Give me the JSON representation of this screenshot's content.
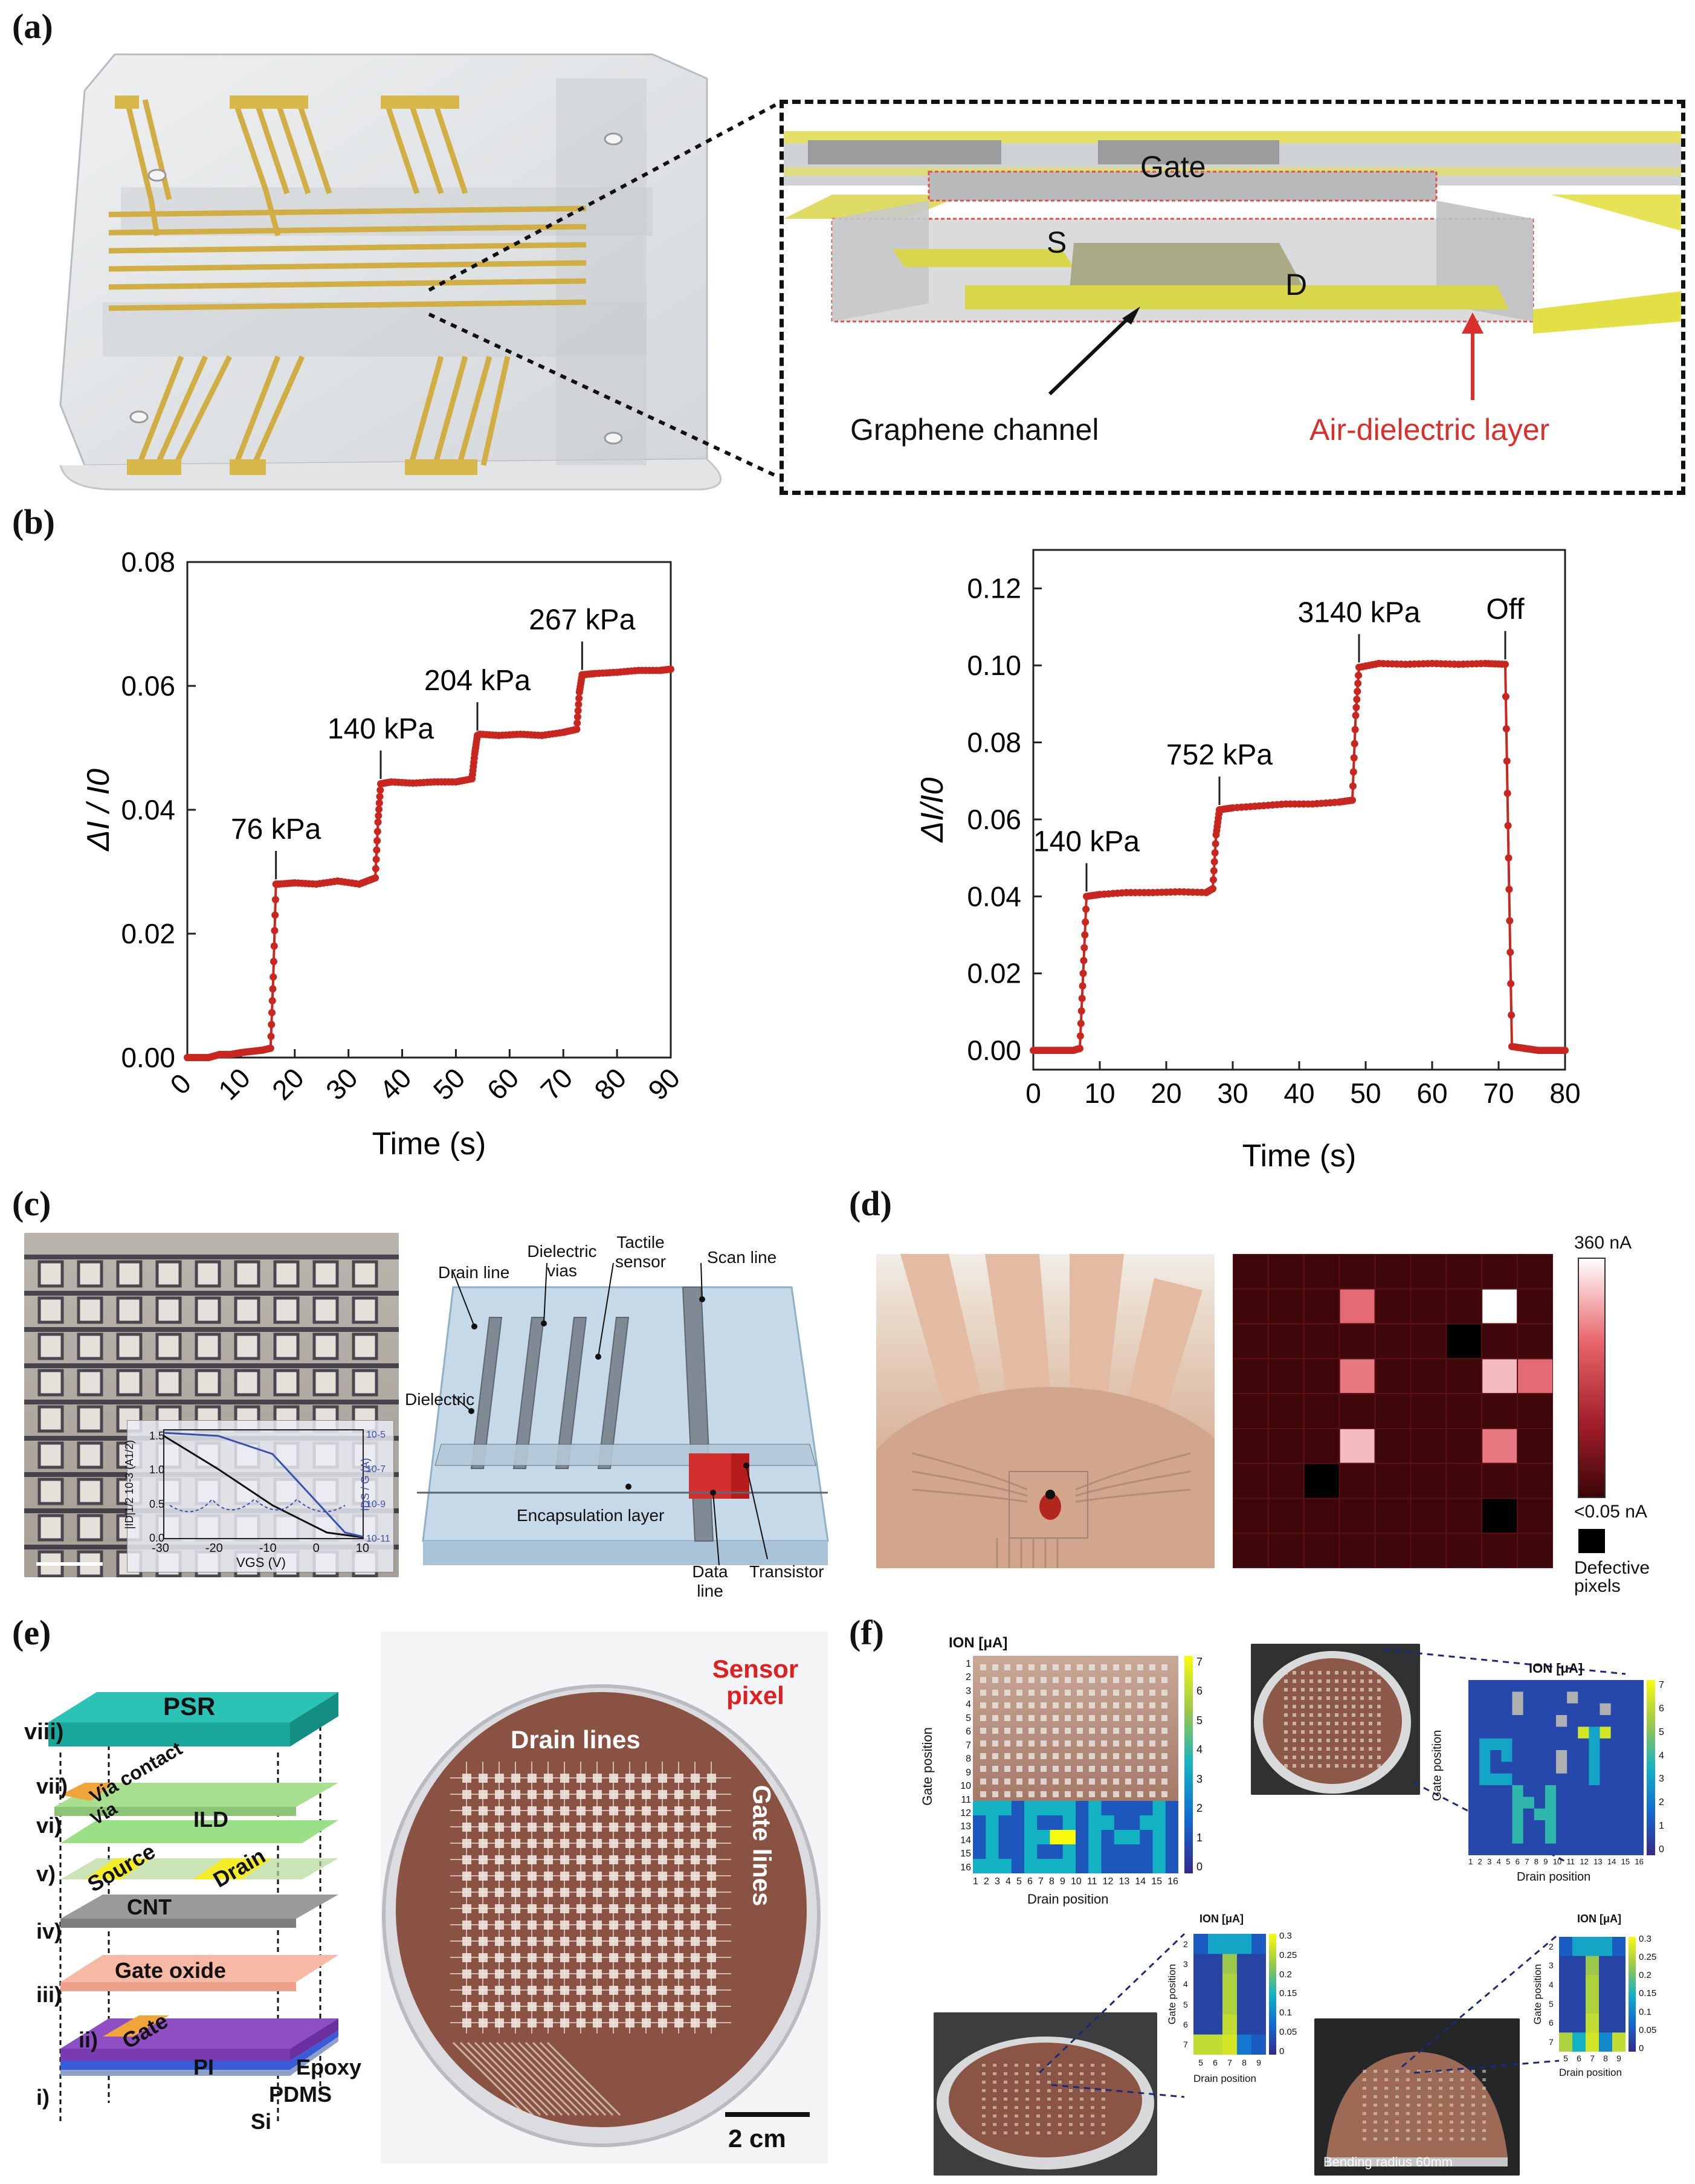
{
  "panels": {
    "a": "(a)",
    "b": "(b)",
    "c": "(c)",
    "d": "(d)",
    "e": "(e)",
    "f": "(f)"
  },
  "panel_a": {
    "gate": "Gate",
    "source": "S",
    "drain": "D",
    "graphene_channel": "Graphene channel",
    "air_dielectric": "Air-dielectric layer",
    "colors": {
      "trace": "#d8b84a",
      "highlight": "#e8e24a",
      "red": "#d9302b"
    }
  },
  "chart_data": [
    {
      "type": "line",
      "title": "",
      "xlabel": "Time (s)",
      "ylabel": "ΔI / I0",
      "xlim": [
        0,
        90
      ],
      "ylim": [
        0,
        0.08
      ],
      "xticks": [
        0,
        10,
        20,
        30,
        40,
        50,
        60,
        70,
        80,
        90
      ],
      "yticks": [
        "0.00",
        "0.02",
        "0.04",
        "0.06",
        "0.08"
      ],
      "series": [
        {
          "color": "#c8261f",
          "x": [
            0,
            2,
            4,
            6,
            8,
            10,
            12,
            14,
            15.5,
            16,
            16.5,
            17,
            20,
            24,
            28,
            32,
            35,
            35.5,
            36,
            38,
            42,
            46,
            50,
            53,
            53.5,
            54,
            54.5,
            58,
            62,
            66,
            70,
            72.5,
            73,
            73.5,
            76,
            80,
            84,
            88,
            90
          ],
          "y": [
            0.0,
            0.0,
            0.0,
            0.0005,
            0.0005,
            0.0008,
            0.001,
            0.0012,
            0.0015,
            0.013,
            0.028,
            0.028,
            0.0282,
            0.028,
            0.0285,
            0.028,
            0.029,
            0.038,
            0.0442,
            0.0445,
            0.0443,
            0.0445,
            0.0445,
            0.045,
            0.049,
            0.052,
            0.0522,
            0.052,
            0.0522,
            0.052,
            0.0525,
            0.053,
            0.059,
            0.0618,
            0.062,
            0.0622,
            0.0625,
            0.0625,
            0.0627
          ]
        }
      ],
      "annotations": [
        {
          "text": "76 kPa",
          "x": 16.5,
          "y": 0.028
        },
        {
          "text": "140 kPa",
          "x": 36,
          "y": 0.0442
        },
        {
          "text": "204 kPa",
          "x": 54,
          "y": 0.052
        },
        {
          "text": "267 kPa",
          "x": 73.5,
          "y": 0.0618
        }
      ]
    },
    {
      "type": "line",
      "title": "",
      "xlabel": "Time (s)",
      "ylabel": "ΔI/I0",
      "xlim": [
        0,
        80
      ],
      "ylim": [
        -0.005,
        0.13
      ],
      "xticks": [
        0,
        10,
        20,
        30,
        40,
        50,
        60,
        70,
        80
      ],
      "yticks": [
        "0.00",
        "0.02",
        "0.04",
        "0.06",
        "0.08",
        "0.10",
        "0.12"
      ],
      "series": [
        {
          "color": "#c8261f",
          "x": [
            0,
            2,
            4,
            6,
            7,
            7.5,
            8,
            10,
            14,
            18,
            22,
            26,
            27,
            27.5,
            28,
            30,
            34,
            38,
            42,
            46,
            48,
            48.5,
            49,
            52,
            56,
            60,
            64,
            68,
            71,
            71.5,
            72,
            74,
            76,
            78,
            80
          ],
          "y": [
            0.0,
            0.0,
            0.0,
            0.0,
            0.0005,
            0.02,
            0.04,
            0.0405,
            0.041,
            0.041,
            0.0412,
            0.041,
            0.042,
            0.056,
            0.0625,
            0.063,
            0.0635,
            0.064,
            0.064,
            0.0645,
            0.065,
            0.087,
            0.0995,
            0.1005,
            0.1003,
            0.1005,
            0.1003,
            0.1005,
            0.1003,
            0.05,
            0.001,
            0.0005,
            0.0,
            0.0,
            0.0
          ]
        }
      ],
      "annotations": [
        {
          "text": "140 kPa",
          "x": 8,
          "y": 0.04
        },
        {
          "text": "752 kPa",
          "x": 28,
          "y": 0.0625
        },
        {
          "text": "3140 kPa",
          "x": 49,
          "y": 0.0995
        },
        {
          "text": "Off",
          "x": 71,
          "y": 0.1003
        }
      ]
    },
    {
      "type": "line",
      "title": "",
      "xlabel": "VGS (V)",
      "ylabel": "|ID|1/2 10-3 (A1/2)",
      "ylabel2": "IDS / G (A)",
      "xticks": [
        -30,
        -20,
        -10,
        0,
        10
      ],
      "yticks": [
        "0.0",
        "0.5",
        "1.0",
        "1.5"
      ],
      "yticks2": [
        "10-11",
        "10-9",
        "10-7",
        "10-5"
      ],
      "series": [
        {
          "color": "#111111",
          "x": [
            -30,
            -20,
            -10,
            0,
            10
          ],
          "y": [
            1.5,
            1.05,
            0.6,
            0.2,
            0.0
          ]
        },
        {
          "color": "#3b4fb0",
          "x": [
            -30,
            -20,
            -10,
            0,
            10
          ],
          "y": [
            1.55,
            1.5,
            1.3,
            0.6,
            0.05
          ]
        }
      ]
    }
  ],
  "panel_c": {
    "drain_line": "Drain line",
    "dielectric_vias": "Dielectric vias",
    "tactile_sensor": "Tactile sensor",
    "scan_line": "Scan line",
    "dielectric": "Dielectric",
    "encapsulation_layer": "Encapsulation layer",
    "data_line": "Data line",
    "transistor": "Transistor"
  },
  "panel_d": {
    "scale_max": "360 nA",
    "scale_min": "<0.05 nA",
    "defective": "Defective pixels",
    "grid_rows": 9,
    "grid_cols": 9,
    "heatmap": [
      [
        0,
        0,
        0,
        0,
        0,
        0,
        0,
        0,
        0
      ],
      [
        0,
        0,
        0,
        0.75,
        0,
        0,
        0,
        1.0,
        0
      ],
      [
        0,
        0,
        0,
        0,
        0,
        0,
        -1,
        0,
        0
      ],
      [
        0,
        0,
        0,
        0.8,
        0,
        0,
        0,
        0.9,
        0.75
      ],
      [
        0,
        0,
        0,
        0,
        0,
        0,
        0,
        0,
        0
      ],
      [
        0,
        0,
        0,
        0.9,
        0,
        0,
        0,
        0.8,
        0
      ],
      [
        0,
        0,
        -1,
        0,
        0,
        0,
        0,
        0,
        0
      ],
      [
        0,
        0,
        0,
        0,
        0,
        0,
        0,
        -1,
        0
      ],
      [
        0,
        0,
        0,
        0,
        0,
        0,
        0,
        0,
        0
      ]
    ]
  },
  "panel_e": {
    "layers": [
      {
        "num": "viii)",
        "name": "PSR"
      },
      {
        "num": "vii)",
        "name": "Via contact"
      },
      {
        "num": "vi)",
        "name": "Via"
      },
      {
        "num": "",
        "name": "ILD"
      },
      {
        "num": "v)",
        "name": "Source"
      },
      {
        "num": "",
        "name": "Drain"
      },
      {
        "num": "iv)",
        "name": "CNT"
      },
      {
        "num": "iii)",
        "name": "Gate oxide"
      },
      {
        "num": "ii)",
        "name": "Gate"
      },
      {
        "num": "i)",
        "name": "PI"
      }
    ],
    "substrate": [
      "Epoxy",
      "PDMS",
      "Si"
    ],
    "drain_lines": "Drain lines",
    "gate_lines": "Gate lines",
    "sensor_pixel": "Sensor pixel",
    "scalebar": "2 cm"
  },
  "panel_f": {
    "ion_label": "ION [μA]",
    "gate_position": "Gate position",
    "drain_position": "Drain position",
    "bending_radius": "Bending radius 60mm",
    "tl_cbar": [
      "7",
      "6",
      "5",
      "4",
      "3",
      "2",
      "1",
      "0"
    ],
    "tr_cbar": [
      "7",
      "6",
      "5",
      "4",
      "3",
      "2",
      "1",
      "0"
    ],
    "small_cbar": [
      "0.3",
      "0.25",
      "0.2",
      "0.15",
      "0.1",
      "0.05",
      "0"
    ],
    "big_ticks": [
      "1",
      "2",
      "3",
      "4",
      "5",
      "6",
      "7",
      "8",
      "9",
      "10",
      "11",
      "12",
      "13",
      "14",
      "15",
      "16"
    ],
    "small_yticks": [
      "2",
      "3",
      "4",
      "5",
      "6",
      "7"
    ],
    "small_xticks": [
      "5",
      "6",
      "7",
      "8",
      "9"
    ]
  }
}
